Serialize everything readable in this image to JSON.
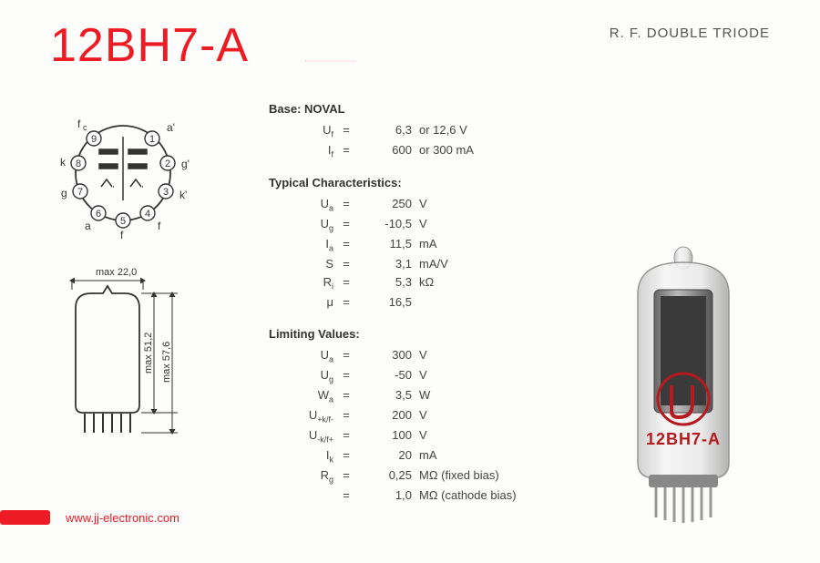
{
  "accent_color": "#ed1c24",
  "text_color": "#444444",
  "title": "12BH7-A",
  "subtitle": "R. F. DOUBLE TRIODE",
  "base_section": {
    "heading_prefix": "Base:",
    "heading_value": "NOVAL",
    "rows": [
      {
        "sym": "U",
        "sub": "f",
        "val": "6,3",
        "unit": "or  12,6   V"
      },
      {
        "sym": "I",
        "sub": "f",
        "val": "600",
        "unit": "or   300   mA"
      }
    ]
  },
  "typical_section": {
    "heading": "Typical Characteristics:",
    "rows": [
      {
        "sym": "U",
        "sub": "a",
        "val": "250",
        "unit": "V"
      },
      {
        "sym": "U",
        "sub": "g",
        "val": "-10,5",
        "unit": "V"
      },
      {
        "sym": "I",
        "sub": "a",
        "val": "11,5",
        "unit": "mA"
      },
      {
        "sym": "S",
        "sub": "",
        "val": "3,1",
        "unit": "mA/V"
      },
      {
        "sym": "R",
        "sub": "i",
        "val": "5,3",
        "unit": "kΩ"
      },
      {
        "sym": "μ",
        "sub": "",
        "val": "16,5",
        "unit": ""
      }
    ]
  },
  "limiting_section": {
    "heading": "Limiting Values:",
    "rows": [
      {
        "sym": "U",
        "sub": "a",
        "val": "300",
        "unit": "V"
      },
      {
        "sym": "U",
        "sub": "g",
        "val": "-50",
        "unit": "V"
      },
      {
        "sym": "W",
        "sub": "a",
        "val": "3,5",
        "unit": "W"
      },
      {
        "sym": "U",
        "sub": "+k/f-",
        "val": "200",
        "unit": "V"
      },
      {
        "sym": "U",
        "sub": "-k/f+",
        "val": "100",
        "unit": "V"
      },
      {
        "sym": "I",
        "sub": "k",
        "val": "20",
        "unit": "mA"
      },
      {
        "sym": "R",
        "sub": "g",
        "val": "0,25",
        "unit": "MΩ   (fixed bias)"
      },
      {
        "sym": "",
        "sub": "",
        "val": "1,0",
        "unit": "MΩ   (cathode bias)"
      }
    ]
  },
  "pinout": {
    "pins": [
      {
        "num": "1",
        "label": "a'"
      },
      {
        "num": "2",
        "label": "g'"
      },
      {
        "num": "3",
        "label": "k'"
      },
      {
        "num": "4",
        "label": "f"
      },
      {
        "num": "5",
        "label": "f"
      },
      {
        "num": "6",
        "label": "a"
      },
      {
        "num": "7",
        "label": "g"
      },
      {
        "num": "8",
        "label": "k"
      },
      {
        "num": "9",
        "label": "fc"
      }
    ]
  },
  "dimensions": {
    "width_label": "max 22,0",
    "height1_label": "max 51,2",
    "height2_label": "max 57,6"
  },
  "tube_marking": "12BH7-A",
  "url": "www.jj-electronic.com"
}
